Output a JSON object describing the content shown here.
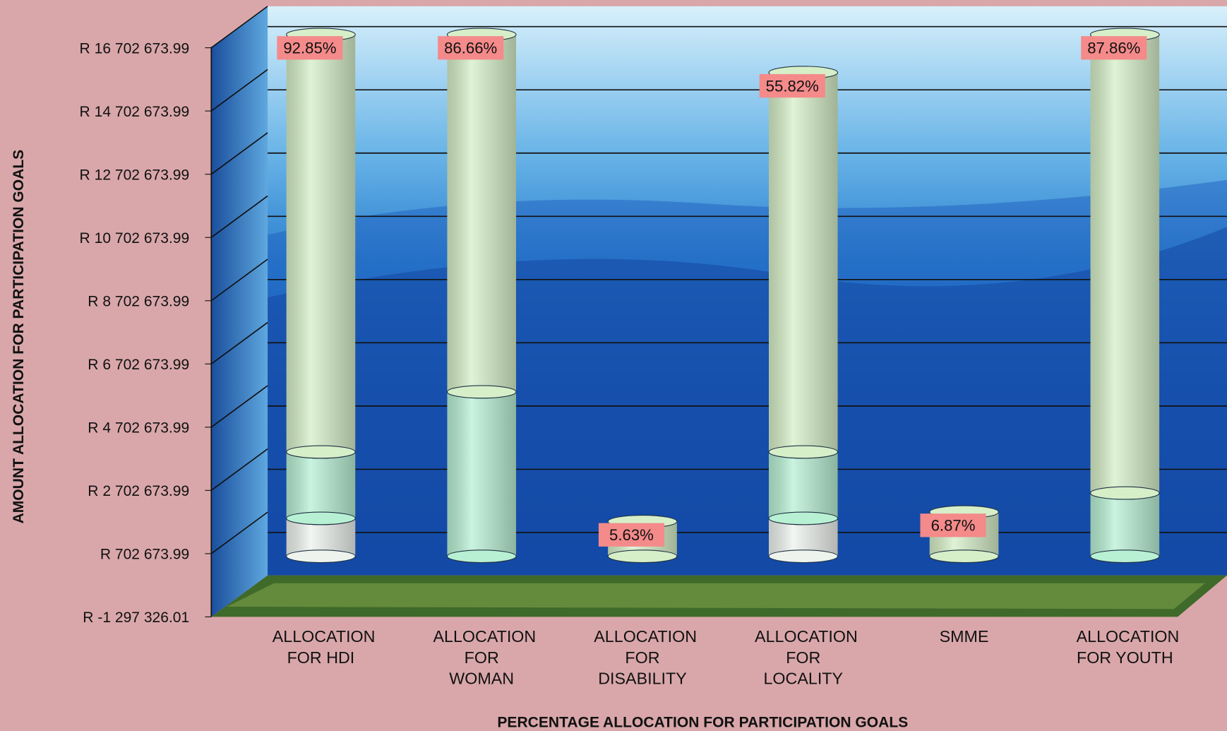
{
  "chart_data": {
    "type": "bar3d-stacked",
    "x_label": "PERCENTAGE ALLOCATION FOR PARTICIPATION GOALS",
    "y_label": "AMOUNT ALLOCATION FOR PARTICIPATION GOALS",
    "categories": [
      "ALLOCATION FOR HDI",
      "ALLOCATION FOR WOMAN",
      "ALLOCATION FOR DISABILITY",
      "ALLOCATION FOR LOCALITY",
      "SMME",
      "ALLOCATION FOR YOUTH"
    ],
    "series": [
      {
        "color": "#eef3ee",
        "values": [
          1200000,
          0,
          0,
          1200000,
          0,
          0
        ]
      },
      {
        "color": "#b8f0d4",
        "values": [
          2100000,
          5200000,
          0,
          2100000,
          0,
          2000000
        ]
      },
      {
        "color": "#d6efc8",
        "values": [
          13200000,
          11300000,
          1100000,
          12000000,
          1400000,
          14500000
        ]
      }
    ],
    "top_labels": [
      "92.85%",
      "86.66%",
      "5.63%",
      "55.82%",
      "6.87%",
      "87.86%"
    ],
    "ylim": [
      -1297326.01,
      16702673.99
    ],
    "yticks": [
      {
        "value": -1297326.01,
        "label": "R -1 297 326.01"
      },
      {
        "value": 702673.99,
        "label": "R 702 673.99"
      },
      {
        "value": 2702673.99,
        "label": "R 2 702 673.99"
      },
      {
        "value": 4702673.99,
        "label": "R 4 702 673.99"
      },
      {
        "value": 6702673.99,
        "label": "R 6 702 673.99"
      },
      {
        "value": 8702673.99,
        "label": "R 8 702 673.99"
      },
      {
        "value": 10702673.99,
        "label": "R 10 702 673.99"
      },
      {
        "value": 12702673.99,
        "label": "R 12 702 673.99"
      },
      {
        "value": 14702673.99,
        "label": "R 14 702 673.99"
      },
      {
        "value": 16702673.99,
        "label": "R 16 702 673.99"
      }
    ],
    "grid": true
  }
}
